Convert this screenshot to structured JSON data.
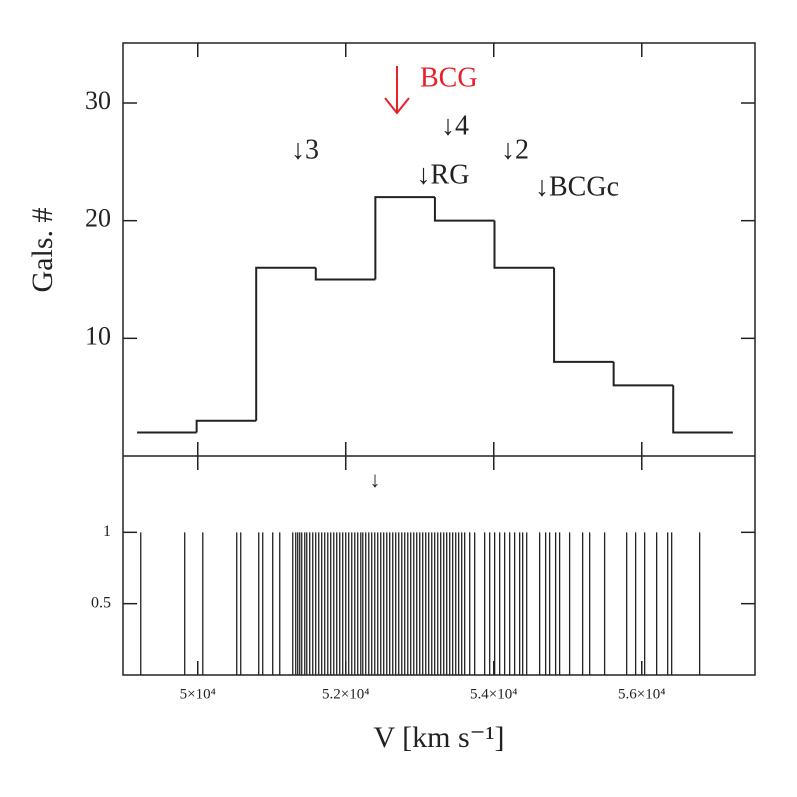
{
  "chart_data": [
    {
      "type": "histogram",
      "ylabel": "Gals. #",
      "bins": [
        49180,
        49985,
        50790,
        51595,
        52400,
        53205,
        54010,
        54815,
        55620,
        56425,
        57230
      ],
      "values": [
        2,
        3,
        16,
        15,
        22,
        20,
        16,
        8,
        6,
        2
      ],
      "color": "#222222",
      "xlim": [
        48990,
        57530
      ],
      "ylim": [
        0,
        35.1
      ],
      "yticks": [
        10,
        20,
        30
      ],
      "annotations": [
        "↓3",
        "↓4",
        "↓2",
        "↓RG",
        "↓BCGc",
        "BCG"
      ],
      "annotation_color": "#e8202a"
    },
    {
      "type": "stem",
      "xlabel": "V [km s⁻¹]",
      "x": [
        49230,
        49824,
        50068,
        50527,
        50581,
        50824,
        50878,
        51013,
        51108,
        51284,
        51324,
        51351,
        51378,
        51405,
        51446,
        51473,
        51513,
        51554,
        51594,
        51635,
        51675,
        51716,
        51757,
        51797,
        51838,
        51878,
        51919,
        51959,
        52000,
        52040,
        52081,
        52122,
        52162,
        52203,
        52230,
        52270,
        52311,
        52351,
        52392,
        52432,
        52473,
        52513,
        52554,
        52594,
        52635,
        52675,
        52716,
        52757,
        52797,
        52838,
        52878,
        52919,
        52959,
        53000,
        53040,
        53081,
        53121,
        53162,
        53202,
        53243,
        53283,
        53324,
        53364,
        53405,
        53445,
        53486,
        53526,
        53567,
        53607,
        53675,
        53742,
        53877,
        53945,
        54012,
        54080,
        54147,
        54215,
        54282,
        54350,
        54391,
        54445,
        54620,
        54701,
        54755,
        54836,
        54890,
        55025,
        55201,
        55296,
        55498,
        55796,
        55917,
        56039,
        56201,
        56350,
        56404,
        56782
      ],
      "values": [
        1,
        1,
        1,
        1,
        1,
        1,
        1,
        1,
        1,
        1,
        1,
        1,
        1,
        1,
        1,
        1,
        1,
        1,
        1,
        1,
        1,
        1,
        1,
        1,
        1,
        1,
        1,
        1,
        1,
        1,
        1,
        1,
        1,
        1,
        1,
        1,
        1,
        1,
        1,
        1,
        1,
        1,
        1,
        1,
        1,
        1,
        1,
        1,
        1,
        1,
        1,
        1,
        1,
        1,
        1,
        1,
        1,
        1,
        1,
        1,
        1,
        1,
        1,
        1,
        1,
        1,
        1,
        1,
        1,
        1,
        1,
        1,
        1,
        1,
        1,
        1,
        1,
        1,
        1,
        1,
        1,
        1,
        1,
        1,
        1,
        1,
        1,
        1,
        1,
        1,
        1,
        1,
        1,
        1,
        1,
        1,
        1
      ],
      "color": "#222222",
      "xlim": [
        48990,
        57530
      ],
      "ylim": [
        0,
        1.535
      ],
      "yticks": [
        0.5,
        1
      ],
      "xticks": [
        {
          "value": 50000,
          "label": "5×10⁴"
        },
        {
          "value": 52000,
          "label": "5.2×10⁴"
        },
        {
          "value": 54000,
          "label": "5.4×10⁴"
        },
        {
          "value": 56000,
          "label": "5.6×10⁴"
        }
      ],
      "annotations": [
        "↓"
      ]
    }
  ]
}
